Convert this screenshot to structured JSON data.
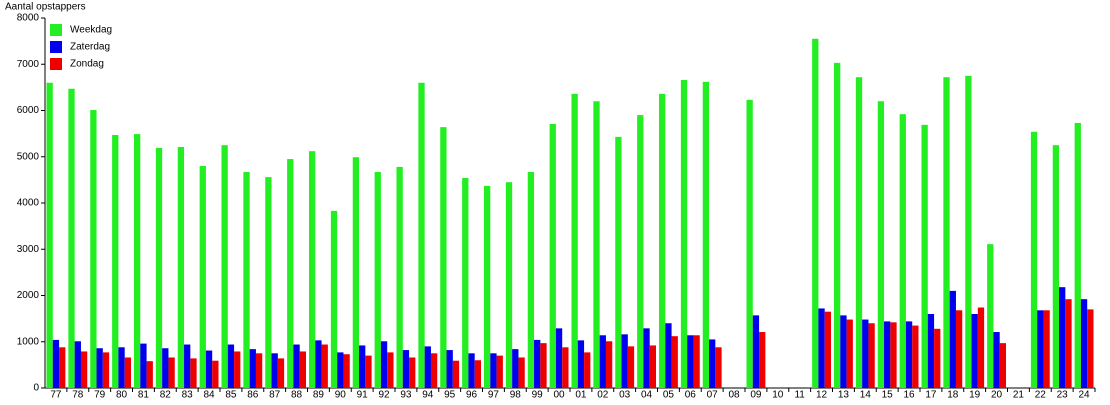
{
  "chart_data": {
    "type": "bar",
    "y_label": "Aantal opstappers",
    "categories": [
      "77",
      "78",
      "79",
      "80",
      "81",
      "82",
      "83",
      "84",
      "85",
      "86",
      "87",
      "88",
      "89",
      "90",
      "91",
      "92",
      "93",
      "94",
      "95",
      "96",
      "97",
      "98",
      "99",
      "00",
      "01",
      "02",
      "03",
      "04",
      "05",
      "06",
      "07",
      "08",
      "09",
      "10",
      "11",
      "12",
      "13",
      "14",
      "15",
      "16",
      "17",
      "18",
      "19",
      "20",
      "21",
      "22",
      "23",
      "24"
    ],
    "series": [
      {
        "name": "Weekdag",
        "color": "#22ee22",
        "values": [
          6600,
          6470,
          6010,
          5470,
          5490,
          5190,
          5210,
          4800,
          5250,
          4670,
          4560,
          4950,
          5120,
          3830,
          4990,
          4670,
          4780,
          6600,
          5640,
          4540,
          4370,
          4450,
          4670,
          5710,
          6360,
          6200,
          5430,
          5900,
          6360,
          6660,
          6620,
          null,
          6230,
          null,
          null,
          7550,
          7030,
          6720,
          6200,
          5920,
          5690,
          6720,
          6750,
          3110,
          null,
          5540,
          5250,
          5730
        ]
      },
      {
        "name": "Zaterdag",
        "color": "#0000ee",
        "values": [
          1040,
          1010,
          860,
          880,
          960,
          860,
          940,
          810,
          940,
          840,
          750,
          940,
          1030,
          770,
          920,
          1010,
          820,
          900,
          820,
          750,
          750,
          840,
          1040,
          1290,
          1030,
          1140,
          1160,
          1290,
          1400,
          1140,
          1050,
          null,
          1570,
          null,
          null,
          1720,
          1570,
          1480,
          1440,
          1440,
          1600,
          2100,
          1600,
          1210,
          null,
          1680,
          2180,
          1920
        ]
      },
      {
        "name": "Zondag",
        "color": "#ee0000",
        "values": [
          880,
          790,
          770,
          660,
          580,
          660,
          640,
          590,
          790,
          750,
          640,
          790,
          940,
          730,
          700,
          770,
          660,
          750,
          590,
          600,
          700,
          660,
          970,
          880,
          770,
          1010,
          900,
          920,
          1120,
          1140,
          880,
          null,
          1210,
          null,
          null,
          1650,
          1480,
          1400,
          1420,
          1350,
          1280,
          1680,
          1740,
          970,
          null,
          1680,
          1920,
          1700
        ]
      }
    ],
    "ylim": [
      0,
      8000
    ],
    "yticks": [
      0,
      1000,
      2000,
      3000,
      4000,
      5000,
      6000,
      7000,
      8000
    ],
    "legend": "top-left"
  }
}
